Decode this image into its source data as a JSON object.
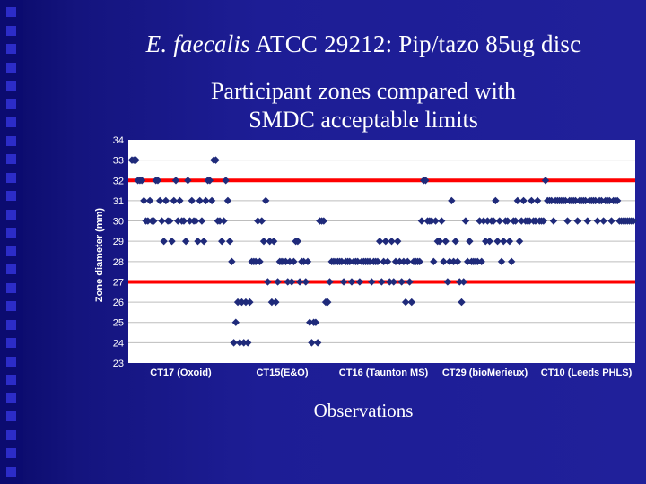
{
  "slide": {
    "title_italic": "E. faecalis",
    "title_rest": " ATCC 29212: Pip/tazo 85ug disc",
    "subtitle_line1": "Participant zones compared with",
    "subtitle_line2": "SMDC acceptable limits",
    "x_axis_title": "Observations"
  },
  "colors": {
    "background": "#1d1d95",
    "plot_area": "#ffffff",
    "marker": "#1f2a7a",
    "limit_line": "#ff0000",
    "axis_text": "#ffffff"
  },
  "chart_data": {
    "type": "scatter",
    "ylabel": "Zone diameter (mm)",
    "xlabel": "Observations",
    "ylim": [
      23,
      34
    ],
    "y_ticks": [
      34,
      33,
      32,
      31,
      30,
      29,
      28,
      27,
      26,
      25,
      24,
      23
    ],
    "grid": "horizontal",
    "categories": [
      "CT17 (Oxoid)",
      "CT15(E&O)",
      "CT16 (Taunton MS)",
      "CT29 (bioMerieux)",
      "CT10 (Leeds PHLS)"
    ],
    "acceptable_limits": [
      27,
      32
    ],
    "series": [
      {
        "values": [
          33,
          33,
          33,
          32,
          32,
          32,
          31,
          30,
          30,
          31,
          30,
          30,
          32,
          32,
          31,
          30,
          29,
          31,
          30,
          30,
          29,
          31,
          32,
          30,
          31,
          30,
          30,
          29,
          32,
          30,
          31,
          30,
          30,
          29,
          31,
          30,
          29,
          31,
          32,
          32,
          31,
          33,
          33,
          30,
          30,
          29,
          30,
          32,
          31,
          29,
          28,
          24,
          25,
          26,
          24,
          26,
          24,
          26,
          24,
          26,
          28,
          28,
          28,
          30,
          28,
          30,
          29,
          31,
          27,
          29,
          26,
          29,
          26,
          27,
          28,
          28,
          28,
          28,
          27,
          28,
          27,
          28,
          29,
          29,
          27,
          28,
          28,
          27,
          28,
          25,
          24,
          25,
          25,
          24,
          30,
          30,
          30,
          26,
          26,
          27,
          28,
          28,
          28,
          28,
          28,
          28,
          27,
          28,
          28,
          28,
          27,
          28,
          28,
          28,
          27,
          28,
          28,
          28,
          28,
          28,
          27,
          28,
          28,
          28,
          29,
          27,
          28,
          29,
          28,
          27,
          29,
          27,
          28,
          29,
          28,
          27,
          28,
          26,
          28,
          27,
          26,
          28,
          28,
          28,
          28,
          30,
          32,
          32,
          30,
          30,
          30,
          28,
          30,
          29,
          29,
          30,
          28,
          29,
          27,
          28,
          31,
          28,
          29,
          28,
          27,
          26,
          27,
          30,
          28,
          29,
          28,
          28,
          28,
          28,
          30,
          28,
          30,
          29,
          30,
          29,
          30,
          30,
          31,
          29,
          30,
          28,
          29,
          30,
          30,
          29,
          28,
          30,
          30,
          31,
          29,
          30,
          31,
          30,
          30,
          30,
          31,
          30,
          30,
          31,
          30,
          30,
          30,
          32,
          31,
          31,
          31,
          30,
          31,
          31,
          31,
          31,
          31,
          31,
          30,
          31,
          31,
          31,
          31,
          30,
          31,
          31,
          31,
          31,
          30,
          31,
          31,
          31,
          31,
          30,
          31,
          31,
          30,
          31,
          31,
          31,
          30,
          31,
          31,
          31,
          30,
          30,
          30,
          30,
          30,
          30,
          30,
          30
        ]
      }
    ]
  }
}
